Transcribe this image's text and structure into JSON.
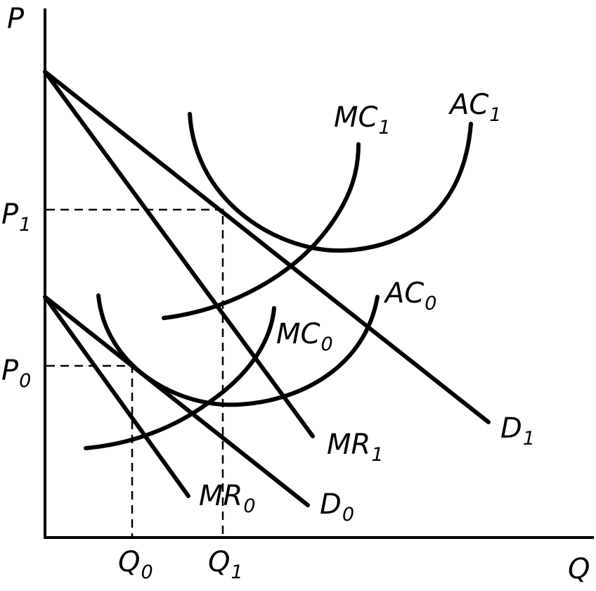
{
  "axes": {
    "x_label": "Q",
    "y_label": "P"
  },
  "ticks": {
    "p1": {
      "main": "P",
      "sub": "1"
    },
    "p0": {
      "main": "P",
      "sub": "0"
    },
    "q0": {
      "main": "Q",
      "sub": "0"
    },
    "q1": {
      "main": "Q",
      "sub": "1"
    }
  },
  "curves": {
    "d1": {
      "main": "D",
      "sub": "1"
    },
    "mr1": {
      "main": "MR",
      "sub": "1"
    },
    "mc1": {
      "main": "MC",
      "sub": "1"
    },
    "ac1": {
      "main": "AC",
      "sub": "1"
    },
    "d0": {
      "main": "D",
      "sub": "0"
    },
    "mr0": {
      "main": "MR",
      "sub": "0"
    },
    "mc0": {
      "main": "MC",
      "sub": "0"
    },
    "ac0": {
      "main": "AC",
      "sub": "0"
    }
  }
}
